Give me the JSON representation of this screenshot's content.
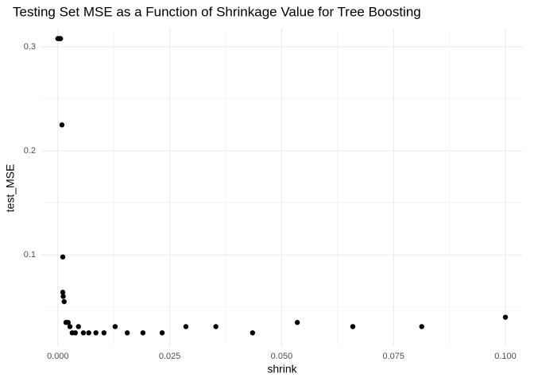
{
  "chart_data": {
    "type": "scatter",
    "title": "Testing Set MSE as a Function of Shrinkage Value for Tree Boosting",
    "x_label": "shrink",
    "y_label": "test_MSE",
    "color": "#000000",
    "grid": true,
    "xlim": [
      -0.0037,
      0.1039
    ],
    "ylim": [
      0.0115,
      0.3176
    ],
    "xticks": [
      {
        "value": 0,
        "label": "0.000"
      },
      {
        "value": 0.025,
        "label": "0.025"
      },
      {
        "value": 0.05,
        "label": "0.050"
      },
      {
        "value": 0.075,
        "label": "0.075"
      },
      {
        "value": 0.1,
        "label": "0.100"
      }
    ],
    "yticks": [
      0.1,
      0.2,
      0.3
    ],
    "x_minor_ticks": [
      0.0125,
      0.0375,
      0.0625,
      0.0875
    ],
    "y_minor_ticks": [
      0.05,
      0.15,
      0.25
    ],
    "x": [
      0.0,
      0.0002,
      0.0004,
      0.0006,
      0.0009,
      0.0011,
      0.0011,
      0.0012,
      0.0014,
      0.0018,
      0.0023,
      0.0027,
      0.0032,
      0.0039,
      0.0046,
      0.0057,
      0.0069,
      0.0085,
      0.0103,
      0.0128,
      0.0155,
      0.019,
      0.0233,
      0.0286,
      0.0353,
      0.0435,
      0.0535,
      0.0659,
      0.0813,
      0.1
    ],
    "y": [
      0.308,
      0.308,
      0.308,
      0.308,
      0.225,
      0.098,
      0.064,
      0.06,
      0.055,
      0.035,
      0.035,
      0.031,
      0.025,
      0.025,
      0.031,
      0.025,
      0.025,
      0.025,
      0.025,
      0.031,
      0.025,
      0.025,
      0.025,
      0.031,
      0.031,
      0.025,
      0.035,
      0.031,
      0.031,
      0.04
    ]
  }
}
